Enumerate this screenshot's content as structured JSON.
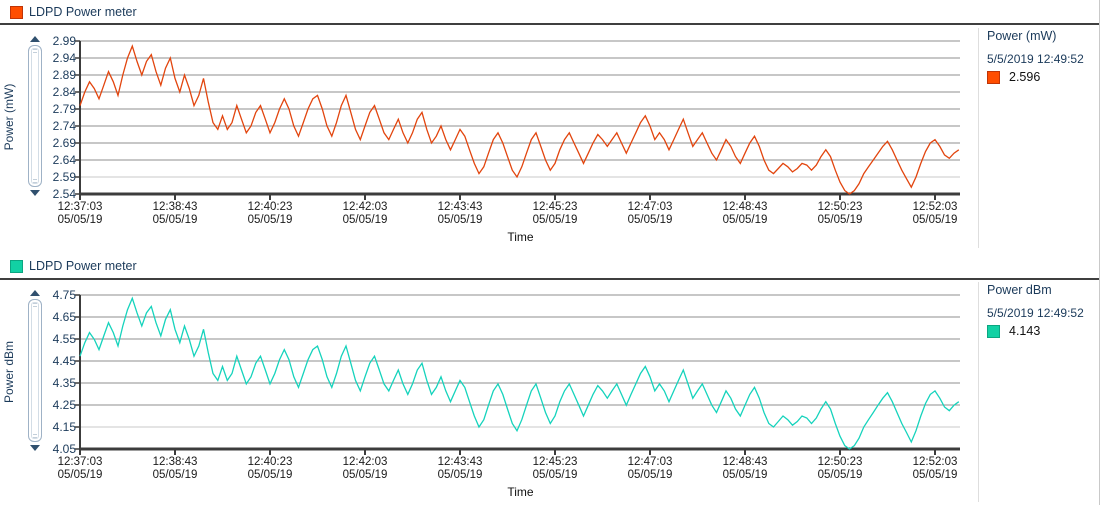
{
  "window": {
    "background": "#ffffff"
  },
  "sections": [
    {
      "legend": {
        "label": "LDPD Power meter",
        "swatch_color": "#ff4d00",
        "swatch_border": "#bf3407"
      },
      "y_axis_title": "Power (mW)",
      "x_axis_title": "Time",
      "panel": {
        "title": "Power (mW)",
        "timestamp": "5/5/2019 12:49:52",
        "value": "2.596",
        "swatch_color": "#ff4d00",
        "swatch_border": "#bf3407"
      }
    },
    {
      "legend": {
        "label": "LDPD Power meter",
        "swatch_color": "#12d1a4",
        "swatch_border": "#0ba681"
      },
      "y_axis_title": "Power dBm",
      "x_axis_title": "Time",
      "panel": {
        "title": "Power dBm",
        "timestamp": "5/5/2019 12:49:52",
        "value": "4.143",
        "swatch_color": "#12d1a4",
        "swatch_border": "#0ba681"
      }
    }
  ],
  "chart_data": [
    {
      "type": "line",
      "title": "LDPD Power meter",
      "ylabel": "Power (mW)",
      "xlabel": "Time",
      "ylim": [
        2.54,
        2.99
      ],
      "yticks": [
        "2.99",
        "2.94",
        "2.89",
        "2.84",
        "2.79",
        "2.74",
        "2.69",
        "2.64",
        "2.59",
        "2.54"
      ],
      "xticks_time": [
        "12:37:03",
        "12:38:43",
        "12:40:23",
        "12:42:03",
        "12:43:43",
        "12:45:23",
        "12:47:03",
        "12:48:43",
        "12:50:23",
        "12:52:03"
      ],
      "xtick_date": "05/05/19",
      "xtick_interval_s": 100,
      "sample_interval_s": 5,
      "grid": true,
      "legend_position": "right",
      "legend_timestamp": "5/5/2019 12:49:52",
      "legend_value": 2.596,
      "line_color": "#e2450e",
      "grid_color": "#8f8f8f",
      "grid_color_light": "#c9c9c9",
      "axis_color": "#3c3c3c",
      "values_mW": [
        2.8,
        2.84,
        2.87,
        2.85,
        2.82,
        2.86,
        2.9,
        2.87,
        2.83,
        2.89,
        2.94,
        2.975,
        2.93,
        2.89,
        2.93,
        2.95,
        2.9,
        2.86,
        2.91,
        2.94,
        2.88,
        2.84,
        2.89,
        2.85,
        2.8,
        2.83,
        2.88,
        2.81,
        2.75,
        2.73,
        2.77,
        2.73,
        2.75,
        2.8,
        2.76,
        2.72,
        2.74,
        2.78,
        2.8,
        2.76,
        2.72,
        2.75,
        2.79,
        2.82,
        2.79,
        2.74,
        2.71,
        2.75,
        2.79,
        2.82,
        2.83,
        2.79,
        2.74,
        2.71,
        2.75,
        2.8,
        2.83,
        2.78,
        2.73,
        2.7,
        2.74,
        2.78,
        2.8,
        2.76,
        2.72,
        2.7,
        2.73,
        2.76,
        2.72,
        2.69,
        2.72,
        2.76,
        2.78,
        2.73,
        2.69,
        2.71,
        2.74,
        2.7,
        2.67,
        2.7,
        2.73,
        2.71,
        2.67,
        2.63,
        2.6,
        2.62,
        2.66,
        2.7,
        2.72,
        2.69,
        2.65,
        2.61,
        2.59,
        2.62,
        2.66,
        2.7,
        2.72,
        2.68,
        2.64,
        2.61,
        2.63,
        2.67,
        2.7,
        2.72,
        2.69,
        2.66,
        2.63,
        2.66,
        2.69,
        2.715,
        2.7,
        2.68,
        2.7,
        2.72,
        2.69,
        2.66,
        2.69,
        2.72,
        2.75,
        2.77,
        2.74,
        2.7,
        2.72,
        2.7,
        2.67,
        2.7,
        2.73,
        2.76,
        2.72,
        2.68,
        2.7,
        2.72,
        2.69,
        2.66,
        2.64,
        2.67,
        2.7,
        2.68,
        2.65,
        2.63,
        2.66,
        2.69,
        2.71,
        2.68,
        2.64,
        2.61,
        2.6,
        2.615,
        2.63,
        2.62,
        2.605,
        2.615,
        2.63,
        2.625,
        2.61,
        2.625,
        2.65,
        2.67,
        2.65,
        2.61,
        2.575,
        2.55,
        2.54,
        2.55,
        2.57,
        2.6,
        2.62,
        2.64,
        2.66,
        2.68,
        2.695,
        2.67,
        2.64,
        2.61,
        2.585,
        2.56,
        2.59,
        2.63,
        2.665,
        2.69,
        2.7,
        2.68,
        2.655,
        2.645,
        2.66,
        2.67
      ]
    },
    {
      "type": "line",
      "title": "LDPD Power meter",
      "ylabel": "Power dBm",
      "xlabel": "Time",
      "ylim": [
        4.05,
        4.75
      ],
      "yticks": [
        "4.75",
        "4.65",
        "4.55",
        "4.45",
        "4.35",
        "4.25",
        "4.15",
        "4.05"
      ],
      "xticks_time": [
        "12:37:03",
        "12:38:43",
        "12:40:23",
        "12:42:03",
        "12:43:43",
        "12:45:23",
        "12:47:03",
        "12:48:43",
        "12:50:23",
        "12:52:03"
      ],
      "xtick_date": "05/05/19",
      "xtick_interval_s": 100,
      "sample_interval_s": 5,
      "grid": true,
      "legend_position": "right",
      "legend_timestamp": "5/5/2019 12:49:52",
      "legend_value": 4.143,
      "line_color": "#15d3bc",
      "grid_color": "#8f8f8f",
      "grid_color_light": "#c9c9c9",
      "axis_color": "#3c3c3c",
      "values_derivation": "dBm = 10 * log10(mW); same signal as chart 0, min 4.048, max 4.735, last 4.27"
    }
  ]
}
